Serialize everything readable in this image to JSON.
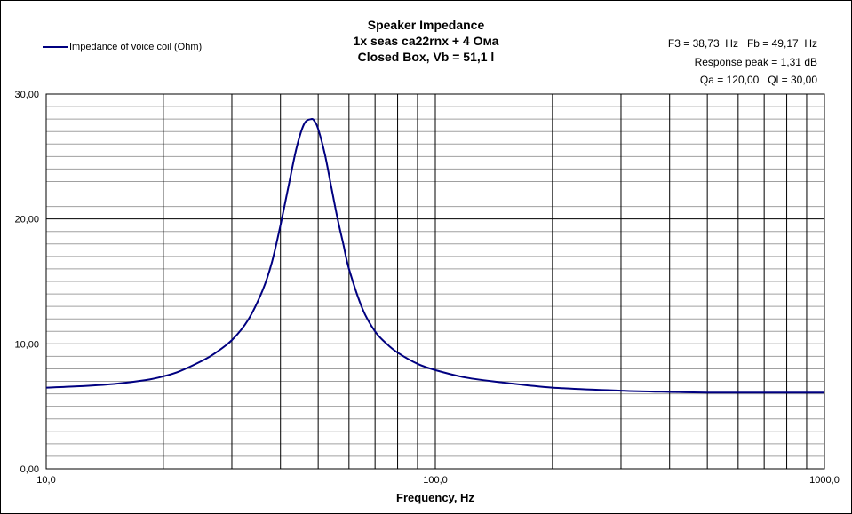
{
  "chart_data": {
    "type": "line",
    "title_lines": [
      "Speaker Impedance",
      "1x seas ca22rnx + 4 Ома",
      "Closed Box, Vb = 51,1 l"
    ],
    "info_lines": [
      "F3 = 38,73  Hz   Fb = 49,17  Hz",
      "Response peak = 1,31 dB",
      "Qa = 120,00   Ql = 30,00"
    ],
    "xlabel": "Frequency, Hz",
    "ylabel": "",
    "xscale": "log",
    "xlim": [
      10,
      1000
    ],
    "ylim": [
      0,
      30
    ],
    "x_tick_labels": [
      "10,0",
      "100,0",
      "1000,0"
    ],
    "x_tick_values": [
      10,
      100,
      1000
    ],
    "y_tick_labels": [
      "0,00",
      "10,00",
      "20,00",
      "30,00"
    ],
    "y_tick_values": [
      0,
      10,
      20,
      30
    ],
    "legend": "top-left",
    "series": [
      {
        "name": "Impedance of voice coil (Ohm)",
        "color": "#000080",
        "x": [
          10,
          12,
          15,
          18,
          20,
          22,
          25,
          27,
          30,
          33,
          36,
          38,
          40,
          42,
          44,
          46,
          48,
          49,
          50,
          52,
          54,
          56,
          58,
          60,
          65,
          70,
          75,
          80,
          90,
          100,
          120,
          150,
          200,
          300,
          400,
          500,
          700,
          1000
        ],
        "values": [
          6.5,
          6.6,
          6.8,
          7.1,
          7.4,
          7.8,
          8.6,
          9.2,
          10.3,
          11.9,
          14.3,
          16.5,
          19.5,
          22.7,
          25.7,
          27.6,
          28.0,
          27.8,
          27.2,
          25.2,
          22.6,
          20.1,
          18.0,
          16.0,
          12.8,
          11.0,
          10.0,
          9.3,
          8.4,
          7.9,
          7.3,
          6.9,
          6.5,
          6.25,
          6.15,
          6.1,
          6.1,
          6.1
        ]
      }
    ]
  }
}
